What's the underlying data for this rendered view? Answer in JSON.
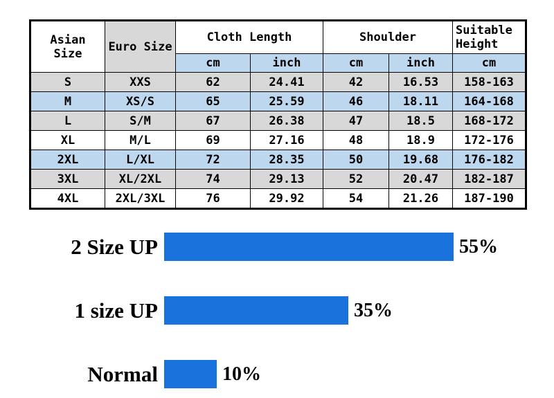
{
  "table": {
    "headers": {
      "asian_size": "Asian Size",
      "euro_size": "Euro Size",
      "cloth_length": "Cloth Length",
      "shoulder": "Shoulder",
      "suitable_height": "Suitable Height"
    },
    "subheaders": [
      "cm",
      "inch",
      "cm",
      "inch",
      "cm"
    ],
    "rows": [
      [
        "S",
        "XXS",
        "62",
        "24.41",
        "42",
        "16.53",
        "158-163"
      ],
      [
        "M",
        "XS/S",
        "65",
        "25.59",
        "46",
        "18.11",
        "164-168"
      ],
      [
        "L",
        "S/M",
        "67",
        "26.38",
        "47",
        "18.5",
        "168-172"
      ],
      [
        "XL",
        "M/L",
        "69",
        "27.16",
        "48",
        "18.9",
        "172-176"
      ],
      [
        "2XL",
        "L/XL",
        "72",
        "28.35",
        "50",
        "19.68",
        "176-182"
      ],
      [
        "3XL",
        "XL/2XL",
        "74",
        "29.13",
        "52",
        "20.47",
        "182-187"
      ],
      [
        "4XL",
        "2XL/3XL",
        "76",
        "29.92",
        "54",
        "21.26",
        "187-190"
      ]
    ]
  },
  "chart": {
    "bar_color": "#1a73dc",
    "bars": [
      {
        "label": "2 Size UP",
        "value": 55,
        "value_label": "55%"
      },
      {
        "label": "1 size UP",
        "value": 35,
        "value_label": "35%"
      },
      {
        "label": "Normal",
        "value": 10,
        "value_label": "10%"
      }
    ]
  },
  "chart_data": [
    {
      "type": "table",
      "title": "Garment size chart",
      "columns": [
        "Asian Size",
        "Euro Size",
        "Cloth Length cm",
        "Cloth Length inch",
        "Shoulder cm",
        "Shoulder inch",
        "Suitable Height cm"
      ],
      "rows": [
        [
          "S",
          "XXS",
          62,
          24.41,
          42,
          16.53,
          "158-163"
        ],
        [
          "M",
          "XS/S",
          65,
          25.59,
          46,
          18.11,
          "164-168"
        ],
        [
          "L",
          "S/M",
          67,
          26.38,
          47,
          18.5,
          "168-172"
        ],
        [
          "XL",
          "M/L",
          69,
          27.16,
          48,
          18.9,
          "172-176"
        ],
        [
          "2XL",
          "L/XL",
          72,
          28.35,
          50,
          19.68,
          "176-182"
        ],
        [
          "3XL",
          "XL/2XL",
          74,
          29.13,
          52,
          20.47,
          "182-187"
        ],
        [
          "4XL",
          "2XL/3XL",
          76,
          29.92,
          54,
          21.26,
          "187-190"
        ]
      ]
    },
    {
      "type": "bar",
      "orientation": "horizontal",
      "categories": [
        "2 Size UP",
        "1 size UP",
        "Normal"
      ],
      "values": [
        55,
        35,
        10
      ],
      "value_labels": [
        "55%",
        "35%",
        "10%"
      ],
      "bar_color": "#1a73dc",
      "xlim": [
        0,
        60
      ],
      "grid": false,
      "legend": false
    }
  ]
}
